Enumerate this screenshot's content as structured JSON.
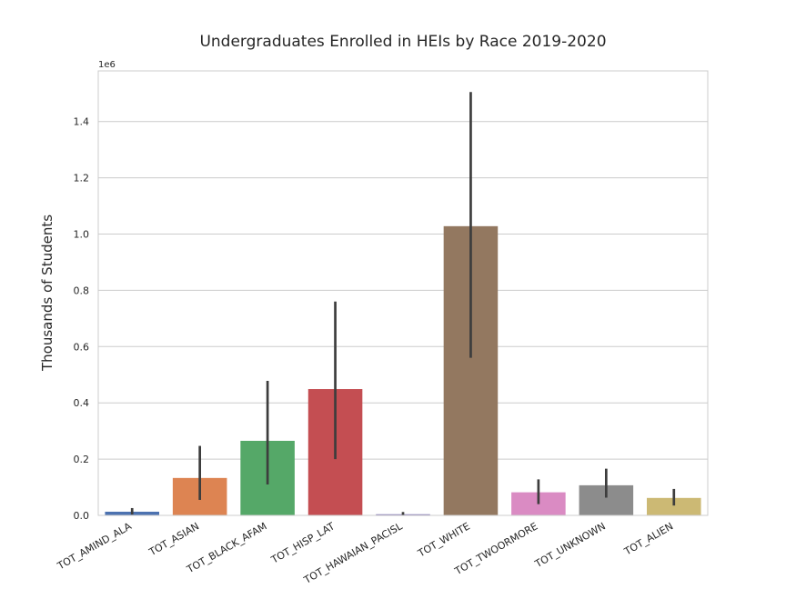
{
  "chart_data": {
    "type": "bar",
    "title": "Undergraduates Enrolled in HEIs by Race 2019-2020",
    "xlabel": "",
    "ylabel": "Thousands of Students",
    "y_offset_label": "1e6",
    "ylim": [
      0,
      1.58
    ],
    "yticks": [
      "0.0",
      "0.2",
      "0.4",
      "0.6",
      "0.8",
      "1.0",
      "1.2",
      "1.4"
    ],
    "grid": true,
    "categories": [
      "TOT_AMIND_ALA",
      "TOT_ASIAN",
      "TOT_BLACK_AFAM",
      "TOT_HISP_LAT",
      "TOT_HAWAIAN_PACISL",
      "TOT_WHITE",
      "TOT_TWOORMORE",
      "TOT_UNKNOWN",
      "TOT_ALIEN"
    ],
    "values": [
      0.013,
      0.133,
      0.265,
      0.449,
      0.004,
      1.028,
      0.082,
      0.107,
      0.062
    ],
    "error_low": [
      0.003,
      0.055,
      0.11,
      0.2,
      0.001,
      0.56,
      0.04,
      0.063,
      0.035
    ],
    "error_high": [
      0.026,
      0.247,
      0.478,
      0.76,
      0.012,
      1.505,
      0.128,
      0.166,
      0.094
    ],
    "colors": [
      "#4c72b0",
      "#dd8452",
      "#55a868",
      "#c44e52",
      "#8172b3",
      "#937860",
      "#da8bc3",
      "#8c8c8c",
      "#ccb974"
    ]
  }
}
